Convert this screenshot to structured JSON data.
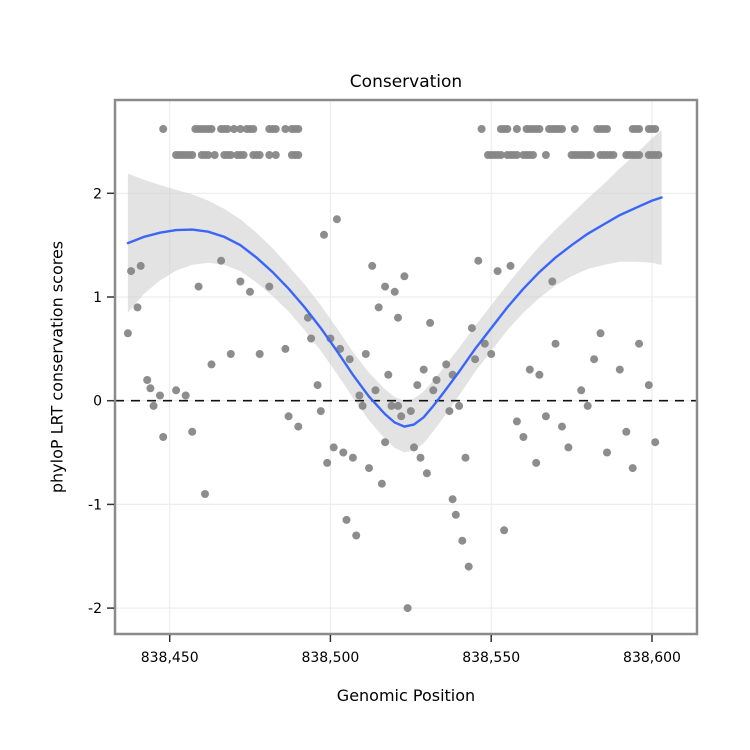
{
  "style": {
    "panel_bg": "#ffffff",
    "panel_border": "#8a8a8a",
    "grid": "#ededed",
    "point": "#878787",
    "smooth": "#3a66f8",
    "band": "#cccccc",
    "band_opacity": 0.55,
    "zero_line": "#111111",
    "tick_color": "#333333",
    "text_color": "#000000"
  },
  "chart_data": {
    "type": "scatter",
    "title": "Conservation",
    "xlabel": "Genomic Position",
    "ylabel": "phyloP LRT conservation scores",
    "xlim": [
      838433,
      838614
    ],
    "ylim": [
      -2.25,
      2.9
    ],
    "xticks": [
      838450,
      838500,
      838550,
      838600
    ],
    "xtick_labels": [
      "838,450",
      "838,500",
      "838,550",
      "838,600"
    ],
    "yticks": [
      -2,
      -1,
      0,
      1,
      2
    ],
    "ytick_labels": [
      "-2",
      "-1",
      "0",
      "1",
      "2"
    ],
    "reference_line_y": 0,
    "grid": true,
    "legend": "none",
    "points": [
      [
        838437,
        0.65
      ],
      [
        838438,
        1.25
      ],
      [
        838440,
        0.9
      ],
      [
        838441,
        1.3
      ],
      [
        838443,
        0.2
      ],
      [
        838444,
        0.12
      ],
      [
        838445,
        -0.05
      ],
      [
        838447,
        0.05
      ],
      [
        838448,
        -0.35
      ],
      [
        838452,
        0.1
      ],
      [
        838455,
        0.05
      ],
      [
        838457,
        -0.3
      ],
      [
        838459,
        1.1
      ],
      [
        838461,
        -0.9
      ],
      [
        838463,
        0.35
      ],
      [
        838466,
        1.35
      ],
      [
        838469,
        0.45
      ],
      [
        838472,
        1.15
      ],
      [
        838475,
        1.05
      ],
      [
        838478,
        0.45
      ],
      [
        838481,
        1.1
      ],
      [
        838486,
        0.5
      ],
      [
        838487,
        -0.15
      ],
      [
        838490,
        -0.25
      ],
      [
        838493,
        0.8
      ],
      [
        838494,
        0.6
      ],
      [
        838496,
        0.15
      ],
      [
        838497,
        -0.1
      ],
      [
        838498,
        1.6
      ],
      [
        838499,
        -0.6
      ],
      [
        838500,
        0.6
      ],
      [
        838501,
        -0.45
      ],
      [
        838502,
        1.75
      ],
      [
        838503,
        0.5
      ],
      [
        838504,
        -0.5
      ],
      [
        838505,
        -1.15
      ],
      [
        838506,
        0.4
      ],
      [
        838507,
        -0.55
      ],
      [
        838508,
        -1.3
      ],
      [
        838509,
        0.05
      ],
      [
        838510,
        -0.05
      ],
      [
        838511,
        0.45
      ],
      [
        838512,
        -0.65
      ],
      [
        838513,
        1.3
      ],
      [
        838514,
        0.1
      ],
      [
        838515,
        0.9
      ],
      [
        838516,
        -0.8
      ],
      [
        838517,
        1.1
      ],
      [
        838517,
        -0.4
      ],
      [
        838518,
        0.25
      ],
      [
        838519,
        -0.05
      ],
      [
        838520,
        1.05
      ],
      [
        838521,
        0.8
      ],
      [
        838521,
        -0.05
      ],
      [
        838522,
        -0.15
      ],
      [
        838523,
        1.2
      ],
      [
        838524,
        -2.0
      ],
      [
        838525,
        -0.1
      ],
      [
        838526,
        -0.45
      ],
      [
        838527,
        0.15
      ],
      [
        838528,
        -0.55
      ],
      [
        838529,
        0.3
      ],
      [
        838530,
        -0.7
      ],
      [
        838531,
        0.75
      ],
      [
        838532,
        0.1
      ],
      [
        838533,
        0.2
      ],
      [
        838536,
        0.35
      ],
      [
        838537,
        -0.1
      ],
      [
        838538,
        0.25
      ],
      [
        838538,
        -0.95
      ],
      [
        838539,
        -1.1
      ],
      [
        838540,
        -0.05
      ],
      [
        838541,
        -1.35
      ],
      [
        838542,
        -0.55
      ],
      [
        838543,
        -1.6
      ],
      [
        838544,
        0.7
      ],
      [
        838545,
        0.4
      ],
      [
        838546,
        1.35
      ],
      [
        838548,
        0.55
      ],
      [
        838550,
        0.45
      ],
      [
        838552,
        1.25
      ],
      [
        838554,
        -1.25
      ],
      [
        838556,
        1.3
      ],
      [
        838558,
        -0.2
      ],
      [
        838560,
        -0.35
      ],
      [
        838562,
        0.3
      ],
      [
        838564,
        -0.6
      ],
      [
        838565,
        0.25
      ],
      [
        838567,
        -0.15
      ],
      [
        838569,
        1.15
      ],
      [
        838570,
        0.55
      ],
      [
        838572,
        -0.25
      ],
      [
        838574,
        -0.45
      ],
      [
        838578,
        0.1
      ],
      [
        838580,
        -0.05
      ],
      [
        838582,
        0.4
      ],
      [
        838584,
        0.65
      ],
      [
        838586,
        -0.5
      ],
      [
        838590,
        0.3
      ],
      [
        838592,
        -0.3
      ],
      [
        838594,
        -0.65
      ],
      [
        838596,
        0.55
      ],
      [
        838599,
        0.15
      ],
      [
        838601,
        -0.4
      ],
      [
        838448,
        2.62
      ],
      [
        838458,
        2.62
      ],
      [
        838459,
        2.62
      ],
      [
        838460,
        2.62
      ],
      [
        838461,
        2.62
      ],
      [
        838462,
        2.62
      ],
      [
        838463,
        2.62
      ],
      [
        838466,
        2.62
      ],
      [
        838467,
        2.62
      ],
      [
        838468,
        2.62
      ],
      [
        838470,
        2.62
      ],
      [
        838472,
        2.62
      ],
      [
        838474,
        2.62
      ],
      [
        838475,
        2.62
      ],
      [
        838476,
        2.62
      ],
      [
        838481,
        2.62
      ],
      [
        838482,
        2.62
      ],
      [
        838483,
        2.62
      ],
      [
        838486,
        2.62
      ],
      [
        838488,
        2.62
      ],
      [
        838489,
        2.62
      ],
      [
        838490,
        2.62
      ],
      [
        838452,
        2.37
      ],
      [
        838453,
        2.37
      ],
      [
        838454,
        2.37
      ],
      [
        838455,
        2.37
      ],
      [
        838456,
        2.37
      ],
      [
        838457,
        2.37
      ],
      [
        838460,
        2.37
      ],
      [
        838461,
        2.37
      ],
      [
        838462,
        2.37
      ],
      [
        838464,
        2.37
      ],
      [
        838467,
        2.37
      ],
      [
        838468,
        2.37
      ],
      [
        838469,
        2.37
      ],
      [
        838471,
        2.37
      ],
      [
        838472,
        2.37
      ],
      [
        838473,
        2.37
      ],
      [
        838476,
        2.37
      ],
      [
        838477,
        2.37
      ],
      [
        838478,
        2.37
      ],
      [
        838481,
        2.37
      ],
      [
        838483,
        2.37
      ],
      [
        838488,
        2.37
      ],
      [
        838489,
        2.37
      ],
      [
        838490,
        2.37
      ],
      [
        838547,
        2.62
      ],
      [
        838553,
        2.62
      ],
      [
        838554,
        2.62
      ],
      [
        838555,
        2.62
      ],
      [
        838558,
        2.62
      ],
      [
        838561,
        2.62
      ],
      [
        838562,
        2.62
      ],
      [
        838563,
        2.62
      ],
      [
        838564,
        2.62
      ],
      [
        838565,
        2.62
      ],
      [
        838568,
        2.62
      ],
      [
        838569,
        2.62
      ],
      [
        838570,
        2.62
      ],
      [
        838571,
        2.62
      ],
      [
        838572,
        2.62
      ],
      [
        838576,
        2.62
      ],
      [
        838583,
        2.62
      ],
      [
        838584,
        2.62
      ],
      [
        838585,
        2.62
      ],
      [
        838586,
        2.62
      ],
      [
        838594,
        2.62
      ],
      [
        838595,
        2.62
      ],
      [
        838596,
        2.62
      ],
      [
        838599,
        2.62
      ],
      [
        838600,
        2.62
      ],
      [
        838601,
        2.62
      ],
      [
        838549,
        2.37
      ],
      [
        838550,
        2.37
      ],
      [
        838551,
        2.37
      ],
      [
        838552,
        2.37
      ],
      [
        838553,
        2.37
      ],
      [
        838555,
        2.37
      ],
      [
        838556,
        2.37
      ],
      [
        838557,
        2.37
      ],
      [
        838558,
        2.37
      ],
      [
        838560,
        2.37
      ],
      [
        838561,
        2.37
      ],
      [
        838562,
        2.37
      ],
      [
        838563,
        2.37
      ],
      [
        838567,
        2.37
      ],
      [
        838575,
        2.37
      ],
      [
        838576,
        2.37
      ],
      [
        838577,
        2.37
      ],
      [
        838578,
        2.37
      ],
      [
        838579,
        2.37
      ],
      [
        838580,
        2.37
      ],
      [
        838581,
        2.37
      ],
      [
        838584,
        2.37
      ],
      [
        838585,
        2.37
      ],
      [
        838586,
        2.37
      ],
      [
        838587,
        2.37
      ],
      [
        838588,
        2.37
      ],
      [
        838592,
        2.37
      ],
      [
        838593,
        2.37
      ],
      [
        838594,
        2.37
      ],
      [
        838595,
        2.37
      ],
      [
        838596,
        2.37
      ],
      [
        838599,
        2.37
      ],
      [
        838600,
        2.37
      ],
      [
        838601,
        2.37
      ],
      [
        838602,
        2.37
      ]
    ],
    "smooth": {
      "x": [
        838437,
        838442,
        838447,
        838452,
        838457,
        838462,
        838467,
        838472,
        838477,
        838482,
        838487,
        838492,
        838497,
        838502,
        838507,
        838512,
        838517,
        838520,
        838523,
        838526,
        838529,
        838532,
        838535,
        838540,
        838545,
        838550,
        838555,
        838560,
        838565,
        838570,
        838575,
        838580,
        838585,
        838590,
        838595,
        838600,
        838603
      ],
      "y": [
        1.52,
        1.58,
        1.62,
        1.645,
        1.65,
        1.63,
        1.58,
        1.5,
        1.38,
        1.24,
        1.08,
        0.9,
        0.7,
        0.48,
        0.25,
        0.04,
        -0.13,
        -0.21,
        -0.25,
        -0.23,
        -0.16,
        -0.05,
        0.07,
        0.28,
        0.5,
        0.7,
        0.9,
        1.08,
        1.24,
        1.38,
        1.5,
        1.61,
        1.7,
        1.79,
        1.86,
        1.93,
        1.96
      ],
      "ci": [
        0.67,
        0.55,
        0.46,
        0.39,
        0.34,
        0.3,
        0.27,
        0.25,
        0.24,
        0.23,
        0.22,
        0.22,
        0.22,
        0.22,
        0.22,
        0.23,
        0.24,
        0.245,
        0.25,
        0.25,
        0.25,
        0.245,
        0.24,
        0.23,
        0.22,
        0.22,
        0.22,
        0.23,
        0.25,
        0.27,
        0.3,
        0.34,
        0.39,
        0.45,
        0.52,
        0.6,
        0.65
      ]
    }
  }
}
